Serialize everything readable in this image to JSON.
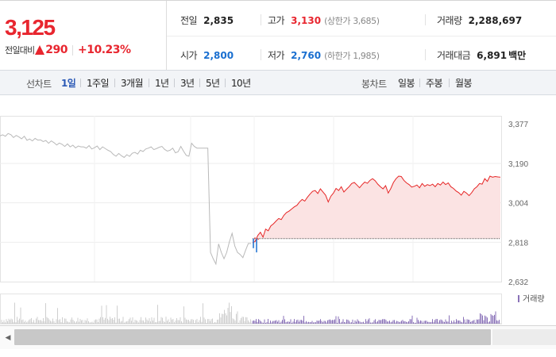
{
  "price": {
    "current": "3,125",
    "change_label": "전일대비",
    "change_amount": "290",
    "change_rate": "+10.23%",
    "up_color": "#e8262f"
  },
  "stats": {
    "prev_close": {
      "label": "전일",
      "value": "2,835"
    },
    "high": {
      "label": "고가",
      "value": "3,130",
      "sub": "(상한가 3,685)"
    },
    "volume": {
      "label": "거래량",
      "value": "2,288,697"
    },
    "open": {
      "label": "시가",
      "value": "2,800"
    },
    "low": {
      "label": "저가",
      "value": "2,760",
      "sub": "(하한가 1,985)"
    },
    "turnover": {
      "label": "거래대금",
      "value": "6,891",
      "unit": "백만"
    }
  },
  "tabs": {
    "line_chart_label": "선차트",
    "periods": [
      "1일",
      "1주일",
      "3개월",
      "1년",
      "3년",
      "5년",
      "10년"
    ],
    "active_period": "1일",
    "candle_chart_label": "봉차트",
    "candles": [
      "일봉",
      "주봉",
      "월봉"
    ]
  },
  "chart_data": {
    "type": "line",
    "y_ticks": [
      "3,377",
      "3,190",
      "3,004",
      "2,818",
      "2,632"
    ],
    "y_tick_values": [
      3377,
      3190,
      3004,
      2818,
      2632
    ],
    "ylim": [
      2632,
      3377
    ],
    "reference_value": 2835,
    "volume_legend": "거래량",
    "colors": {
      "prior": "#b9b9b9",
      "up": "#e62626",
      "down": "#1a6fd0",
      "fill": "#fbe3e3",
      "volume_prior": "#cfcfcf",
      "volume_today": "#8a72b8"
    },
    "prior_series": [
      3320,
      3325,
      3318,
      3331,
      3326,
      3312,
      3322,
      3315,
      3306,
      3318,
      3299,
      3305,
      3296,
      3308,
      3300,
      3301,
      3293,
      3298,
      3285,
      3296,
      3288,
      3277,
      3286,
      3280,
      3270,
      3282,
      3268,
      3276,
      3263,
      3272,
      3268,
      3268,
      3262,
      3274,
      3258,
      3264,
      3272,
      3255,
      3268,
      3260,
      3252,
      3246,
      3232,
      3224,
      3237,
      3226,
      3218,
      3231,
      3223,
      3238,
      3242,
      3234,
      3252,
      3246,
      3258,
      3262,
      3268,
      3255,
      3260,
      3266,
      3270,
      3256,
      3248,
      3252,
      3262,
      3240,
      3245,
      3270,
      3248,
      3228,
      3224,
      3285,
      3270,
      3262,
      3262,
      3262,
      3262,
      3262,
      2770,
      2740,
      2715,
      2810,
      2770,
      2740,
      2770,
      2820,
      2860,
      2800,
      2770,
      2760,
      2745,
      2780,
      2812,
      2812
    ],
    "today_series": [
      2815,
      2822,
      2850,
      2865,
      2842,
      2880,
      2872,
      2895,
      2905,
      2918,
      2930,
      2925,
      2945,
      2958,
      2965,
      2975,
      2985,
      2992,
      3008,
      3020,
      3012,
      3030,
      3045,
      3058,
      3062,
      3048,
      3070,
      3055,
      3040,
      3008,
      3035,
      3050,
      3072,
      3062,
      3080,
      3055,
      3068,
      3080,
      3095,
      3100,
      3088,
      3075,
      3090,
      3102,
      3096,
      3110,
      3118,
      3108,
      3092,
      3080,
      3070,
      3085,
      3050,
      3072,
      3100,
      3118,
      3130,
      3128,
      3110,
      3098,
      3090,
      3078,
      3082,
      3088,
      3075,
      3095,
      3082,
      3090,
      3085,
      3092,
      3080,
      3095,
      3088,
      3102,
      3090,
      3098,
      3080,
      3072,
      3060,
      3052,
      3040,
      3058,
      3050,
      3038,
      3052,
      3070,
      3080,
      3095,
      3092,
      3118,
      3105,
      3130,
      3125,
      3128,
      3126,
      3125
    ],
    "today_dip_marks": [
      2790,
      2840,
      2770,
      2830
    ]
  }
}
